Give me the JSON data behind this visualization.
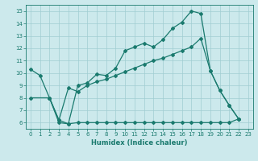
{
  "xlabel": "Humidex (Indice chaleur)",
  "bg_color": "#cce9ec",
  "grid_color": "#a0cdd2",
  "line_color": "#1a7a6e",
  "xlim": [
    -0.5,
    23.5
  ],
  "ylim": [
    5.5,
    15.5
  ],
  "xticks": [
    0,
    1,
    2,
    3,
    4,
    5,
    6,
    7,
    8,
    9,
    10,
    11,
    12,
    13,
    14,
    15,
    16,
    17,
    18,
    19,
    20,
    21,
    22,
    23
  ],
  "yticks": [
    6,
    7,
    8,
    9,
    10,
    11,
    12,
    13,
    14,
    15
  ],
  "line1_x": [
    0,
    1,
    2,
    3,
    4,
    5,
    6,
    7,
    8,
    9,
    10,
    11,
    12,
    13,
    14,
    15,
    16,
    17,
    18,
    19,
    20,
    21,
    22
  ],
  "line1_y": [
    10.3,
    9.8,
    8.0,
    6.0,
    5.9,
    9.0,
    9.2,
    9.9,
    9.8,
    10.4,
    11.8,
    12.1,
    12.4,
    12.1,
    12.7,
    13.6,
    14.1,
    15.0,
    14.8,
    10.2,
    8.6,
    7.4,
    6.3
  ],
  "line2_x": [
    0,
    2,
    3,
    4,
    5,
    6,
    7,
    8,
    9,
    10,
    11,
    12,
    13,
    14,
    15,
    16,
    17,
    18,
    19,
    20,
    21,
    22
  ],
  "line2_y": [
    8.0,
    8.0,
    6.2,
    8.8,
    8.5,
    9.0,
    9.3,
    9.5,
    9.8,
    10.1,
    10.4,
    10.7,
    11.0,
    11.2,
    11.5,
    11.8,
    12.1,
    12.8,
    10.2,
    8.6,
    7.4,
    6.3
  ],
  "line3_x": [
    2,
    3,
    4,
    5,
    6,
    7,
    8,
    9,
    10,
    11,
    12,
    13,
    14,
    15,
    16,
    17,
    18,
    19,
    20,
    21,
    22
  ],
  "line3_y": [
    8.0,
    6.2,
    5.9,
    6.0,
    6.0,
    6.0,
    6.0,
    6.0,
    6.0,
    6.0,
    6.0,
    6.0,
    6.0,
    6.0,
    6.0,
    6.0,
    6.0,
    6.0,
    6.0,
    6.0,
    6.3
  ]
}
